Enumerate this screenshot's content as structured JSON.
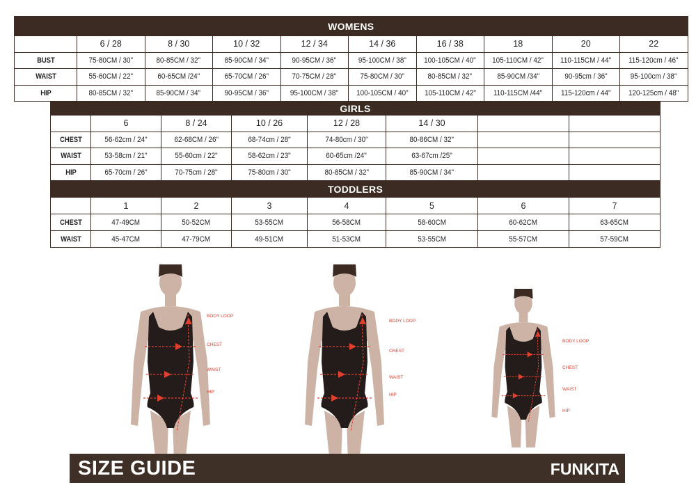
{
  "womens": {
    "title": "WOMENS",
    "sizes": [
      "6 / 28",
      "8 / 30",
      "10 / 32",
      "12 / 34",
      "14 / 36",
      "16 / 38",
      "18",
      "20",
      "22"
    ],
    "rows": [
      {
        "label": "BUST",
        "values": [
          "75-80CM / 30\"",
          "80-85CM / 32\"",
          "85-90CM / 34\"",
          "90-95CM / 36\"",
          "95-100CM / 38\"",
          "100-105CM / 40\"",
          "105-110CM / 42\"",
          "110-115CM / 44\"",
          "115-120cm / 46\""
        ]
      },
      {
        "label": "WAIST",
        "values": [
          "55-60CM / 22\"",
          "60-65CM /24\"",
          "65-70CM / 26\"",
          "70-75CM / 28\"",
          "75-80CM / 30\"",
          "80-85CM / 32\"",
          "85-90CM /34\"",
          "90-95cm / 36\"",
          "95-100cm / 38\""
        ]
      },
      {
        "label": "HIP",
        "values": [
          "80-85CM / 32\"",
          "85-90CM / 34\"",
          "90-95CM / 36\"",
          "95-100CM / 38\"",
          "100-105CM / 40\"",
          "105-110CM / 42\"",
          "110-115CM /44\"",
          "115-120cm / 44\"",
          "120-125cm / 48\""
        ]
      }
    ]
  },
  "girls": {
    "title": "GIRLS",
    "sizes": [
      "6",
      "8 / 24",
      "10 / 26",
      "12 / 28",
      "14 / 30",
      "",
      ""
    ],
    "rows": [
      {
        "label": "CHEST",
        "values": [
          "56-62cm / 24\"",
          "62-68CM / 26\"",
          "68-74cm / 28\"",
          "74-80cm / 30\"",
          "80-86CM / 32\"",
          "",
          ""
        ]
      },
      {
        "label": "WAIST",
        "values": [
          "53-58cm / 21\"",
          "55-60cm / 22\"",
          "58-62cm / 23\"",
          "60-65cm /24\"",
          "63-67cm /25\"",
          "",
          ""
        ]
      },
      {
        "label": "HIP",
        "values": [
          "65-70cm / 26\"",
          "70-75cm / 28\"",
          "75-80cm / 30\"",
          "80-85CM / 32\"",
          "85-90CM / 34\"",
          "",
          ""
        ]
      }
    ]
  },
  "toddlers": {
    "title": "TODDLERS",
    "sizes": [
      "1",
      "2",
      "3",
      "4",
      "5",
      "6",
      "7"
    ],
    "rows": [
      {
        "label": "CHEST",
        "values": [
          "47-49CM",
          "50-52CM",
          "53-55CM",
          "56-58CM",
          "58-60CM",
          "60-62CM",
          "63-65CM"
        ]
      },
      {
        "label": "WAIST",
        "values": [
          "45-47CM",
          "47-79CM",
          "49-51CM",
          "51-53CM",
          "53-55CM",
          "55-57CM",
          "57-59CM"
        ]
      }
    ]
  },
  "figures": [
    {
      "name": "woman-figure-1",
      "labels": [
        "BODY LOOP",
        "CHEST",
        "WAIST",
        "HIP"
      ]
    },
    {
      "name": "woman-figure-2",
      "labels": [
        "BODY LOOP",
        "CHEST",
        "WAIST",
        "HIP"
      ]
    },
    {
      "name": "girl-figure",
      "labels": [
        "BODY LOOP",
        "CHEST",
        "WAIST",
        "HIP"
      ]
    }
  ],
  "footer": {
    "title": "SIZE GUIDE",
    "brand": "FUNKITA"
  },
  "colors": {
    "table_header": "#3b2b22",
    "measure_lines": "#e0402f",
    "footer_bg": "#3f3027"
  }
}
